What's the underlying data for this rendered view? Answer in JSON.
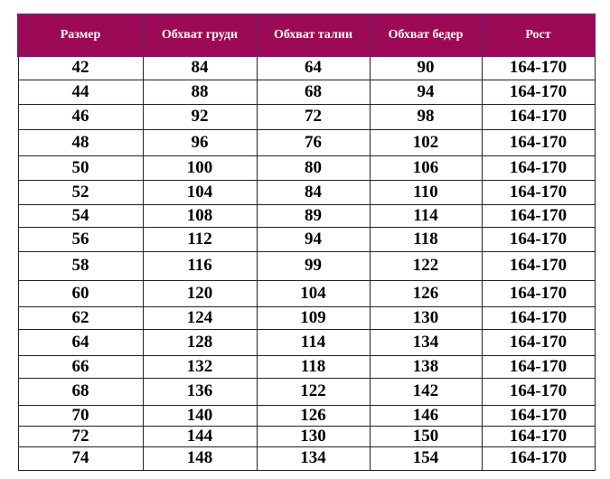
{
  "table": {
    "headers": [
      "Размер",
      "Обхват груди",
      "Обхват талии",
      "Обхват бедер",
      "Рост"
    ],
    "rows": [
      [
        "42",
        "84",
        "64",
        "90",
        "164-170"
      ],
      [
        "44",
        "88",
        "68",
        "94",
        "164-170"
      ],
      [
        "46",
        "92",
        "72",
        "98",
        "164-170"
      ],
      [
        "48",
        "96",
        "76",
        "102",
        "164-170"
      ],
      [
        "50",
        "100",
        "80",
        "106",
        "164-170"
      ],
      [
        "52",
        "104",
        "84",
        "110",
        "164-170"
      ],
      [
        "54",
        "108",
        "89",
        "114",
        "164-170"
      ],
      [
        "56",
        "112",
        "94",
        "118",
        "164-170"
      ],
      [
        "58",
        "116",
        "99",
        "122",
        "164-170"
      ],
      [
        "60",
        "120",
        "104",
        "126",
        "164-170"
      ],
      [
        "62",
        "124",
        "109",
        "130",
        "164-170"
      ],
      [
        "64",
        "128",
        "114",
        "134",
        "164-170"
      ],
      [
        "66",
        "132",
        "118",
        "138",
        "164-170"
      ],
      [
        "68",
        "136",
        "122",
        "142",
        "164-170"
      ],
      [
        "70",
        "140",
        "126",
        "146",
        "164-170"
      ],
      [
        "72",
        "144",
        "130",
        "150",
        "164-170"
      ],
      [
        "74",
        "148",
        "134",
        "154",
        "164-170"
      ]
    ],
    "header_color": "#9c0a55"
  }
}
